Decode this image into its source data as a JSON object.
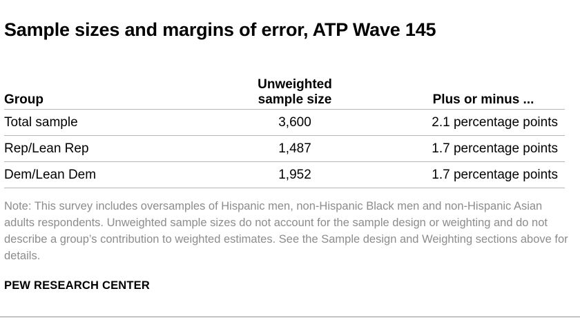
{
  "title": "Sample sizes and margins of error, ATP Wave 145",
  "table": {
    "columns": {
      "group": "Group",
      "size_line1": "Unweighted",
      "size_line2": "sample size",
      "moe": "Plus or minus ..."
    },
    "rows": [
      {
        "group": "Total sample",
        "size": "3,600",
        "moe": "2.1 percentage points"
      },
      {
        "group": "Rep/Lean Rep",
        "size": "1,487",
        "moe": "1.7 percentage points"
      },
      {
        "group": "Dem/Lean Dem",
        "size": "1,952",
        "moe": "1.7 percentage points"
      }
    ]
  },
  "note": "Note: This survey includes oversamples of Hispanic men, non-Hispanic Black men and non-Hispanic Asian adults respondents. Unweighted sample sizes do not account for the sample design or weighting and do not describe a group’s contribution to weighted estimates. See the Sample design and Weighting sections above for details.",
  "source": "PEW RESEARCH CENTER"
}
